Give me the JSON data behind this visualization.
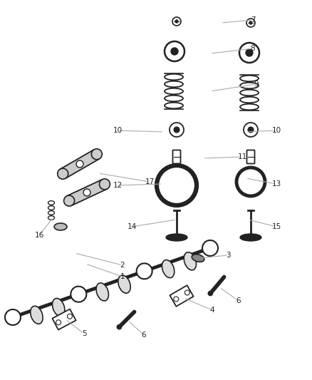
{
  "bg_color": "#ffffff",
  "line_color": "#aaaaaa",
  "part_color": "#222222",
  "label_color": "#222222",
  "fig_width": 4.38,
  "fig_height": 5.33,
  "dpi": 100,
  "label_specs": [
    [
      "7",
      355,
      28,
      310,
      32
    ],
    [
      "8",
      355,
      68,
      295,
      75
    ],
    [
      "9",
      360,
      118,
      295,
      128
    ],
    [
      "10",
      165,
      183,
      230,
      185
    ],
    [
      "10",
      388,
      183,
      345,
      185
    ],
    [
      "11",
      340,
      220,
      285,
      222
    ],
    [
      "12",
      165,
      260,
      228,
      258
    ],
    [
      "13",
      388,
      258,
      345,
      250
    ],
    [
      "14",
      185,
      318,
      248,
      308
    ],
    [
      "15",
      388,
      318,
      348,
      308
    ],
    [
      "16",
      55,
      330,
      75,
      305
    ],
    [
      "17",
      210,
      255,
      138,
      243
    ],
    [
      "1",
      172,
      388,
      120,
      370
    ],
    [
      "2",
      172,
      372,
      105,
      355
    ],
    [
      "3",
      320,
      358,
      280,
      362
    ],
    [
      "4",
      298,
      435,
      258,
      418
    ],
    [
      "5",
      118,
      468,
      92,
      448
    ],
    [
      "6",
      202,
      470,
      180,
      450
    ],
    [
      "6",
      335,
      422,
      308,
      403
    ]
  ]
}
